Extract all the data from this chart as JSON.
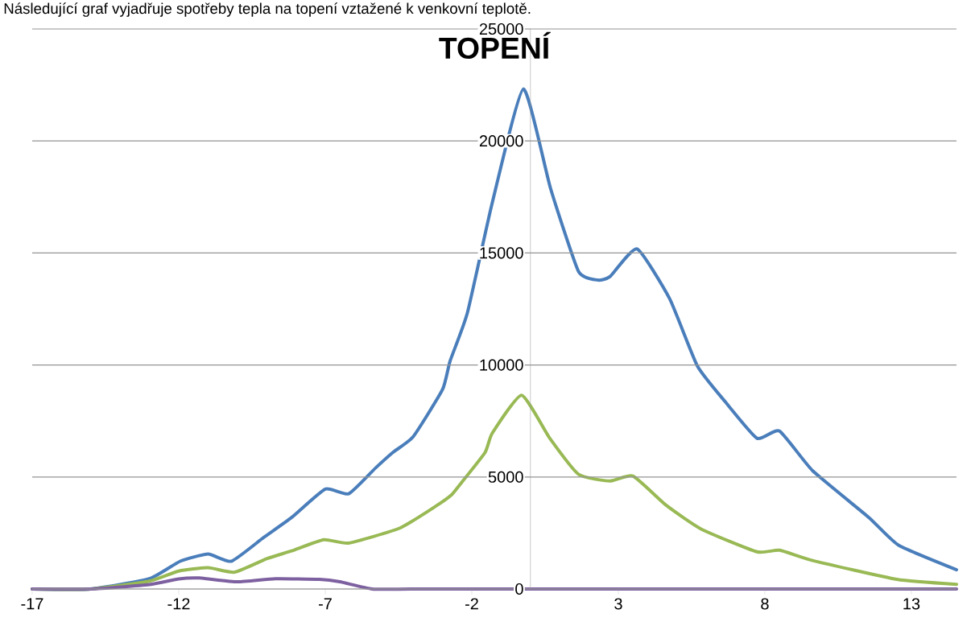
{
  "chart_data": {
    "type": "line",
    "title": "TOPENÍ",
    "annotations": [
      "Následující graf vyjadřuje spotřeby tepla na topení vztažené k venkovní teplotě."
    ],
    "xlim": [
      -17,
      14.54
    ],
    "xticks": [
      -17,
      -12,
      -7,
      -2,
      3,
      8,
      13
    ],
    "ylim": [
      0,
      25000
    ],
    "yticks": [
      0,
      5000,
      10000,
      15000,
      20000,
      25000
    ],
    "grid": "y",
    "marker": "none",
    "line_style": "solid",
    "series": [
      {
        "color": "#4a7ebb",
        "x": [
          -17,
          -15,
          -13,
          -11.95,
          -11.0,
          -10.2,
          -9.1,
          -8.15,
          -7.0,
          -6.2,
          -5.27,
          -4.7,
          -4,
          -3,
          -2.74,
          -2.15,
          -1.3,
          -0.24,
          0.69,
          1.64,
          2.3,
          2.72,
          3.64,
          4.75,
          5.7,
          6.66,
          7.73,
          8.5,
          9.63,
          11.55,
          12.56,
          14.54
        ],
        "values": [
          0,
          0,
          460,
          1240,
          1560,
          1240,
          2300,
          3190,
          4460,
          4250,
          5420,
          6090,
          6800,
          8900,
          10180,
          12330,
          17250,
          22320,
          17870,
          14180,
          13790,
          13950,
          15180,
          12960,
          9950,
          8340,
          6730,
          7050,
          5280,
          3190,
          1960,
          860
        ]
      },
      {
        "color": "#98b954",
        "x": [
          -17,
          -15,
          -13,
          -12,
          -11,
          -10.1,
          -9,
          -8.15,
          -7.05,
          -6.2,
          -4.45,
          -3.2,
          -2.7,
          -2.4,
          -1.55,
          -1.3,
          -0.3,
          0.66,
          1.65,
          2.72,
          3.5,
          4.64,
          5.85,
          7.73,
          8.5,
          9.63,
          12.5,
          14.54
        ],
        "values": [
          0,
          0,
          350,
          800,
          950,
          750,
          1350,
          1700,
          2200,
          2050,
          2720,
          3720,
          4190,
          4670,
          6090,
          6960,
          8650,
          6730,
          5110,
          4820,
          5040,
          3730,
          2660,
          1660,
          1730,
          1270,
          430,
          210
        ]
      },
      {
        "color": "#7d60a0",
        "x": [
          -17,
          -15,
          -13,
          -12,
          -11.3,
          -10,
          -8.7,
          -7.2,
          -6.5,
          -5.4,
          -4,
          0,
          5,
          10,
          14.54
        ],
        "values": [
          0,
          0,
          200,
          450,
          490,
          320,
          460,
          430,
          320,
          0,
          0,
          0,
          0,
          0,
          0
        ]
      }
    ]
  }
}
